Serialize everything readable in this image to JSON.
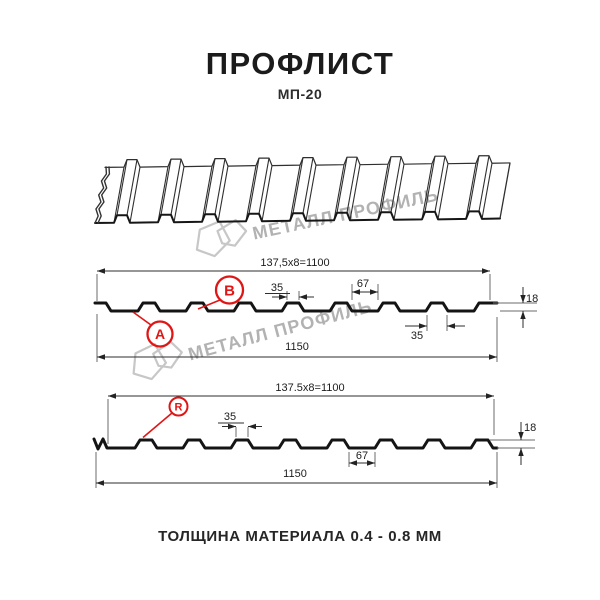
{
  "header": {
    "title": "ПРОФЛИСТ",
    "subtitle": "МП-20"
  },
  "watermark": {
    "text": "МЕТАЛЛ ПРОФИЛЬ"
  },
  "profiles": [
    {
      "side_label_b": "B",
      "side_label_a": "A",
      "module_dim": "137,5x8=1100",
      "overall_width": "1150",
      "crest_width": "35",
      "valley_width": "67",
      "rib_base_width": "35",
      "height": "18"
    },
    {
      "side_label_r": "R",
      "module_dim": "137.5x8=1100",
      "overall_width": "1150",
      "crest_width": "35",
      "valley_width": "67",
      "height": "18"
    }
  ],
  "footer": {
    "thickness_note": "ТОЛЩИНА МАТЕРИАЛА 0.4 - 0.8 ММ"
  },
  "colors": {
    "accent_red": "#e01616",
    "line_dark": "#141414",
    "dim_line": "#2e2e2e",
    "thin_line": "#6b6b6b",
    "watermark_gray": "#b2b2b2",
    "logo_gray": "#c7c7c7"
  }
}
